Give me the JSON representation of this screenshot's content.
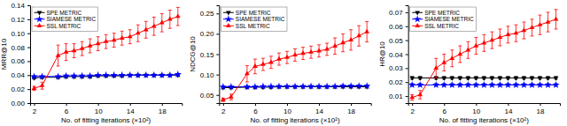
{
  "chart_data": [
    {
      "type": "line",
      "xlabel": "No. of fitting iterations (×10²)",
      "ylabel": "MRR@10",
      "x": [
        2,
        3,
        5,
        6,
        7,
        8,
        9,
        10,
        11,
        12,
        13,
        14,
        15,
        16,
        17,
        18,
        19,
        20
      ],
      "xlim": [
        1.5,
        20.5
      ],
      "xticks": [
        2,
        6,
        10,
        14,
        18
      ],
      "ylim": [
        0,
        0.14
      ],
      "yticks": [
        {
          "value": 0,
          "label": "0.00"
        },
        0.02,
        0.04,
        0.06,
        0.08,
        {
          "value": 0.1,
          "label": "0.10"
        },
        0.12,
        0.14
      ],
      "grid": false,
      "legend": "upper left",
      "series": [
        {
          "name": "SPE METRIC",
          "color": "black",
          "marker": "triangle-down",
          "values": [
            0.036,
            0.037,
            0.037,
            0.038,
            0.038,
            0.038,
            0.038,
            0.039,
            0.039,
            0.039,
            0.039,
            0.04,
            0.04,
            0.04,
            0.04,
            0.04,
            0.04,
            0.04
          ],
          "errors": [
            0.001,
            0.001,
            0.001,
            0.001,
            0.001,
            0.001,
            0.001,
            0.001,
            0.001,
            0.001,
            0.001,
            0.001,
            0.001,
            0.001,
            0.001,
            0.001,
            0.001,
            0.001
          ]
        },
        {
          "name": "SIAMESE METRIC",
          "color": "blue",
          "marker": "star",
          "values": [
            0.038,
            0.038,
            0.038,
            0.039,
            0.039,
            0.039,
            0.039,
            0.04,
            0.04,
            0.04,
            0.04,
            0.04,
            0.04,
            0.04,
            0.04,
            0.04,
            0.04,
            0.041
          ],
          "errors": [
            0.001,
            0.001,
            0.001,
            0.001,
            0.001,
            0.001,
            0.001,
            0.001,
            0.001,
            0.001,
            0.001,
            0.001,
            0.001,
            0.001,
            0.001,
            0.001,
            0.001,
            0.001
          ]
        },
        {
          "name": "SSL METRIC",
          "color": "red",
          "marker": "triangle-up",
          "values": [
            0.021,
            0.025,
            0.068,
            0.073,
            0.075,
            0.078,
            0.082,
            0.085,
            0.088,
            0.09,
            0.093,
            0.095,
            0.1,
            0.105,
            0.11,
            0.115,
            0.12,
            0.124
          ],
          "errors": [
            0.003,
            0.005,
            0.015,
            0.012,
            0.01,
            0.01,
            0.01,
            0.01,
            0.01,
            0.01,
            0.01,
            0.01,
            0.012,
            0.012,
            0.013,
            0.013,
            0.013,
            0.013
          ]
        }
      ]
    },
    {
      "type": "line",
      "xlabel": "No. of fitting iterations (×10²)",
      "ylabel": "NDCG@10",
      "x": [
        2,
        3,
        5,
        6,
        7,
        8,
        9,
        10,
        11,
        12,
        13,
        14,
        15,
        16,
        17,
        18,
        19,
        20
      ],
      "xlim": [
        1.5,
        20.5
      ],
      "xticks": [
        2,
        6,
        10,
        14,
        18
      ],
      "ylim": [
        0.03,
        0.27
      ],
      "yticks": [
        0.05,
        {
          "value": 0.1,
          "label": "0.10"
        },
        0.15,
        {
          "value": 0.2,
          "label": "0.20"
        },
        0.25
      ],
      "grid": false,
      "legend": "upper left",
      "series": [
        {
          "name": "SPE METRIC",
          "color": "black",
          "marker": "triangle-down",
          "values": [
            0.068,
            0.068,
            0.069,
            0.069,
            0.069,
            0.069,
            0.07,
            0.07,
            0.07,
            0.07,
            0.07,
            0.07,
            0.07,
            0.07,
            0.07,
            0.07,
            0.07,
            0.07
          ],
          "errors": [
            0.001,
            0.001,
            0.001,
            0.001,
            0.001,
            0.001,
            0.001,
            0.001,
            0.001,
            0.001,
            0.001,
            0.001,
            0.001,
            0.001,
            0.001,
            0.001,
            0.001,
            0.001
          ]
        },
        {
          "name": "SIAMESE METRIC",
          "color": "blue",
          "marker": "star",
          "values": [
            0.07,
            0.07,
            0.07,
            0.07,
            0.071,
            0.071,
            0.071,
            0.071,
            0.071,
            0.071,
            0.071,
            0.071,
            0.071,
            0.071,
            0.072,
            0.072,
            0.072,
            0.072
          ],
          "errors": [
            0.001,
            0.001,
            0.001,
            0.001,
            0.001,
            0.001,
            0.001,
            0.001,
            0.001,
            0.001,
            0.001,
            0.001,
            0.001,
            0.001,
            0.001,
            0.001,
            0.001,
            0.001
          ]
        },
        {
          "name": "SSL METRIC",
          "color": "red",
          "marker": "triangle-up",
          "values": [
            0.038,
            0.045,
            0.102,
            0.12,
            0.125,
            0.13,
            0.138,
            0.142,
            0.148,
            0.152,
            0.155,
            0.158,
            0.162,
            0.17,
            0.178,
            0.185,
            0.195,
            0.205
          ],
          "errors": [
            0.004,
            0.007,
            0.02,
            0.018,
            0.015,
            0.015,
            0.015,
            0.015,
            0.015,
            0.015,
            0.015,
            0.015,
            0.015,
            0.02,
            0.022,
            0.025,
            0.025,
            0.025
          ]
        }
      ]
    },
    {
      "type": "line",
      "xlabel": "No. of fitting iterations (×10²)",
      "ylabel": "HR@10",
      "x": [
        2,
        3,
        5,
        6,
        7,
        8,
        9,
        10,
        11,
        12,
        13,
        14,
        15,
        16,
        17,
        18,
        19,
        20
      ],
      "xlim": [
        1.5,
        20.5
      ],
      "xticks": [
        2,
        6,
        10,
        14,
        18
      ],
      "ylim": [
        0.005,
        0.075
      ],
      "yticks": [
        0.01,
        0.02,
        0.03,
        0.04,
        0.05,
        0.06,
        0.07
      ],
      "grid": false,
      "legend": "upper left",
      "series": [
        {
          "name": "SPE METRIC",
          "color": "black",
          "marker": "triangle-down",
          "values": [
            0.023,
            0.023,
            0.023,
            0.023,
            0.023,
            0.023,
            0.023,
            0.023,
            0.023,
            0.023,
            0.023,
            0.023,
            0.023,
            0.023,
            0.023,
            0.023,
            0.023,
            0.023
          ],
          "errors": [
            0.001,
            0.001,
            0.001,
            0.001,
            0.001,
            0.001,
            0.001,
            0.001,
            0.001,
            0.001,
            0.001,
            0.001,
            0.001,
            0.001,
            0.001,
            0.001,
            0.001,
            0.001
          ]
        },
        {
          "name": "SIAMESE METRIC",
          "color": "blue",
          "marker": "star",
          "values": [
            0.018,
            0.018,
            0.018,
            0.018,
            0.018,
            0.018,
            0.018,
            0.018,
            0.018,
            0.018,
            0.018,
            0.018,
            0.018,
            0.018,
            0.018,
            0.018,
            0.018,
            0.018
          ],
          "errors": [
            0.001,
            0.001,
            0.001,
            0.001,
            0.001,
            0.001,
            0.001,
            0.001,
            0.001,
            0.001,
            0.001,
            0.001,
            0.001,
            0.001,
            0.001,
            0.001,
            0.001,
            0.001
          ]
        },
        {
          "name": "SSL METRIC",
          "color": "red",
          "marker": "triangle-up",
          "values": [
            0.009,
            0.011,
            0.03,
            0.034,
            0.037,
            0.04,
            0.043,
            0.046,
            0.048,
            0.05,
            0.052,
            0.054,
            0.055,
            0.057,
            0.059,
            0.061,
            0.063,
            0.065
          ],
          "errors": [
            0.002,
            0.003,
            0.007,
            0.006,
            0.006,
            0.006,
            0.006,
            0.006,
            0.006,
            0.006,
            0.006,
            0.006,
            0.006,
            0.006,
            0.006,
            0.007,
            0.007,
            0.007
          ]
        }
      ]
    }
  ]
}
